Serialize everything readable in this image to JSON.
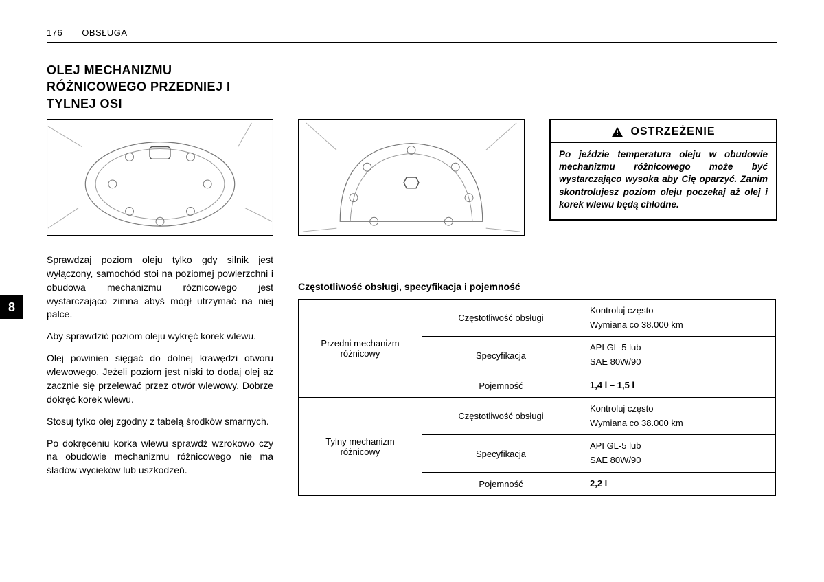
{
  "header": {
    "page_number": "176",
    "section": "OBSŁUGA"
  },
  "tab": "8",
  "title": "OLEJ MECHANIZMU RÓŻNICOWEGO PRZEDNIEJ I TYLNEJ OSI",
  "figures": {
    "left_alt": "[differential housing – front]",
    "mid_alt": "[differential housing – rear]"
  },
  "paragraphs": {
    "p1": "Sprawdzaj poziom oleju tylko gdy silnik jest wyłączony, samochód stoi na poziomej powierzchni i obudowa mechanizmu różnicowego jest wystarczająco zimna abyś mógł utrzymać na niej palce.",
    "p2": "Aby sprawdzić poziom oleju wykręć korek wlewu.",
    "p3": "Olej powinien sięgać do dolnej krawędzi otworu wlewowego. Jeżeli poziom jest niski to dodaj olej aż zacznie się przelewać przez otwór wlewowy. Dobrze dokręć korek wlewu.",
    "p4": "Stosuj tylko olej zgodny z tabelą środków smarnych.",
    "p5": "Po dokręceniu korka wlewu sprawdź wzrokowo czy na obudowie mechanizmu różnicowego nie ma śladów wycieków lub uszkodzeń."
  },
  "warning": {
    "title": "OSTRZEŻENIE",
    "body": "Po jeździe temperatura oleju w obudowie mechanizmu różnicowego może być wystarczająco wysoka aby Cię oparzyć. Zanim skontrolujesz poziom oleju poczekaj aż olej i korek wlewu będą chłodne."
  },
  "table": {
    "heading": "Częstotliwość obsługi, specyfikacja i pojemność",
    "groups": [
      {
        "name": "Przedni mechanizm różnicowy",
        "rows": [
          {
            "param": "Częstotliwość obsługi",
            "value": "Kontroluj często\nWymiana co 38.000 km",
            "bold": false
          },
          {
            "param": "Specyfikacja",
            "value": "API GL-5 lub\nSAE 80W/90",
            "bold": false
          },
          {
            "param": "Pojemność",
            "value": "1,4 l – 1,5 l",
            "bold": true
          }
        ]
      },
      {
        "name": "Tylny mechanizm różnicowy",
        "rows": [
          {
            "param": "Częstotliwość obsługi",
            "value": "Kontroluj często\nWymiana co 38.000 km",
            "bold": false
          },
          {
            "param": "Specyfikacja",
            "value": "API GL-5 lub\nSAE 80W/90",
            "bold": false
          },
          {
            "param": "Pojemność",
            "value": "2,2 l",
            "bold": true
          }
        ]
      }
    ]
  }
}
